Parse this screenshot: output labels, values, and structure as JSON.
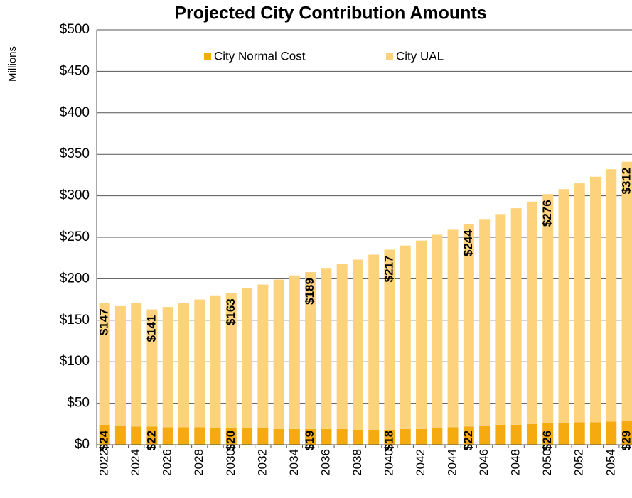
{
  "chart_data": {
    "type": "stacked_bar",
    "title": "Projected City Contribution Amounts",
    "y_label": "Millions",
    "categories": [
      "2022",
      null,
      "2024",
      null,
      "2026",
      null,
      "2028",
      null,
      "2030",
      null,
      "2032",
      null,
      "2034",
      null,
      "2036",
      null,
      "2038",
      null,
      "2040",
      null,
      "2042",
      null,
      "2044",
      null,
      "2046",
      null,
      "2048",
      null,
      "2050",
      null,
      "2052",
      null,
      "2054",
      null
    ],
    "series": [
      {
        "name": "City Normal Cost",
        "color": "#f5aa10",
        "values": [
          24,
          23,
          22,
          22,
          21,
          21,
          21,
          20,
          20,
          20,
          20,
          19,
          19,
          19,
          19,
          19,
          18,
          18,
          18,
          19,
          19,
          20,
          21,
          22,
          23,
          24,
          24,
          25,
          26,
          26,
          27,
          27,
          28,
          29
        ],
        "value_labels": [
          "$24",
          null,
          null,
          "$22",
          null,
          null,
          null,
          null,
          "$20",
          null,
          null,
          null,
          null,
          "$19",
          null,
          null,
          null,
          null,
          "$18",
          null,
          null,
          null,
          null,
          "$22",
          null,
          null,
          null,
          null,
          "$26",
          null,
          null,
          null,
          null,
          "$29"
        ]
      },
      {
        "name": "City UAL",
        "color": "#fdd27c",
        "values": [
          147,
          144,
          149,
          141,
          145,
          150,
          154,
          160,
          163,
          169,
          173,
          180,
          185,
          189,
          194,
          199,
          205,
          211,
          217,
          221,
          227,
          233,
          238,
          244,
          249,
          254,
          261,
          268,
          276,
          282,
          288,
          296,
          304,
          312
        ],
        "value_labels": [
          "$147",
          null,
          null,
          "$141",
          null,
          null,
          null,
          null,
          "$163",
          null,
          null,
          null,
          null,
          "$189",
          null,
          null,
          null,
          null,
          "$217",
          null,
          null,
          null,
          null,
          "$244",
          null,
          null,
          null,
          null,
          "$276",
          null,
          null,
          null,
          null,
          "$312"
        ]
      }
    ],
    "ylim": [
      0,
      500
    ],
    "yticks": [
      {
        "value": 0,
        "label": "$0"
      },
      {
        "value": 50,
        "label": "$50"
      },
      {
        "value": 100,
        "label": "$100"
      },
      {
        "value": 150,
        "label": "$150"
      },
      {
        "value": 200,
        "label": "$200"
      },
      {
        "value": 250,
        "label": "$250"
      },
      {
        "value": 300,
        "label": "$300"
      },
      {
        "value": 350,
        "label": "$350"
      },
      {
        "value": 400,
        "label": "$400"
      },
      {
        "value": 450,
        "label": "$450"
      },
      {
        "value": 500,
        "label": "$500"
      }
    ],
    "grid": true,
    "legend": "top"
  }
}
